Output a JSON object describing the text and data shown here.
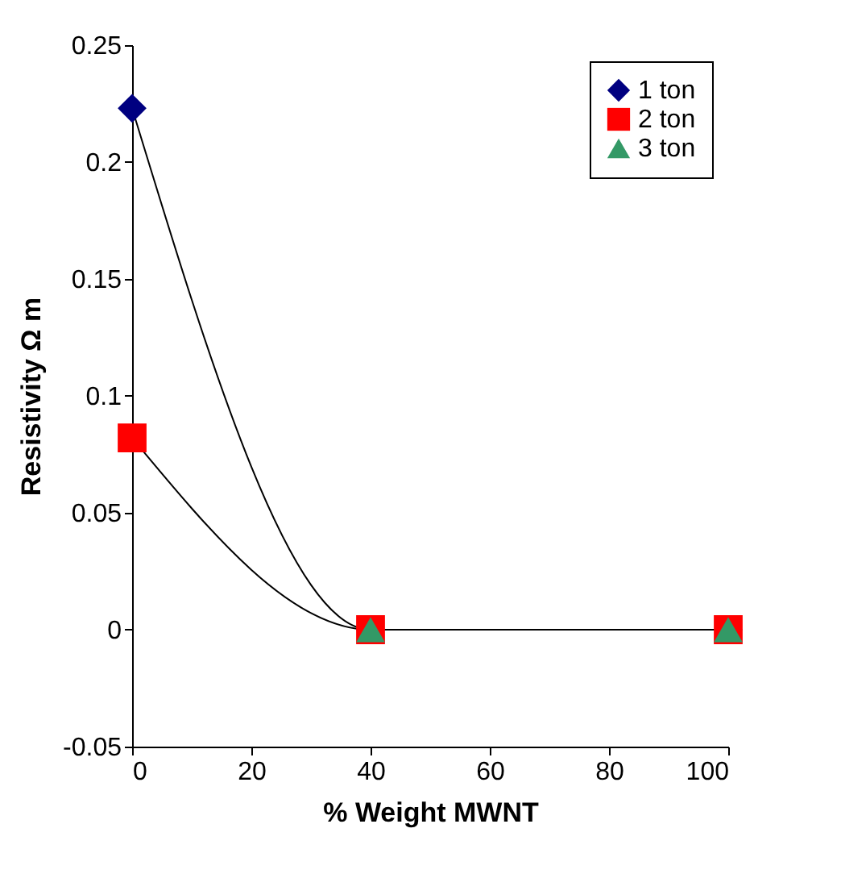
{
  "chart_data": {
    "type": "line",
    "xlabel": "% Weight MWNT",
    "ylabel": "Resistivity Ω m",
    "x": [
      0,
      40,
      100
    ],
    "series": [
      {
        "name": "1 ton",
        "color": "#000080",
        "marker": "diamond",
        "values": [
          0.223,
          0,
          0
        ]
      },
      {
        "name": "2 ton",
        "color": "#ff0000",
        "marker": "square",
        "values": [
          0.082,
          0,
          0
        ]
      },
      {
        "name": "3 ton",
        "type": "scatter",
        "color": "#339966",
        "marker": "triangle",
        "values": [
          null,
          0,
          0
        ]
      }
    ],
    "xlim": [
      0,
      100
    ],
    "xticks": [
      0,
      20,
      40,
      60,
      80,
      100
    ],
    "ylim": [
      -0.05,
      0.25
    ],
    "yticks": [
      -0.05,
      0,
      0.05,
      0.1,
      0.15,
      0.2,
      0.25
    ],
    "grid": false,
    "legend": "top right",
    "line_style": "solid"
  }
}
